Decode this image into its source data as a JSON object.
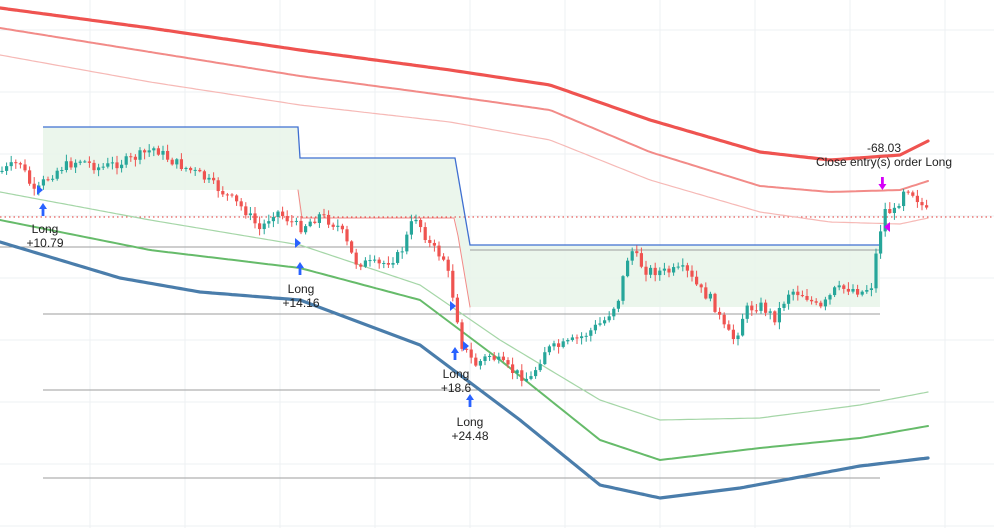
{
  "chart_data": {
    "type": "candlestick",
    "colors": {
      "up": "#26a69a",
      "down": "#ef5350",
      "upper_bands": [
        "#ef5350",
        "#f28b88",
        "#f6b9b6"
      ],
      "lower_bands": [
        "#a5d6a7",
        "#66bb6a",
        "#4a7dab"
      ],
      "stop_line": "#3f6fd1",
      "fill_zone": "#e8f5e9",
      "level_lines": "#9e9e9e",
      "arrow_long": "#2962ff",
      "arrow_close": "#d500f9"
    },
    "annotations": [
      {
        "type": "entry",
        "lines": [
          "Long",
          "+10.79"
        ]
      },
      {
        "type": "entry",
        "lines": [
          "Long",
          "+14.16"
        ]
      },
      {
        "type": "entry",
        "lines": [
          "Long",
          "+18.6"
        ]
      },
      {
        "type": "entry",
        "lines": [
          "Long",
          "+24.48"
        ]
      },
      {
        "type": "exit",
        "lines": [
          "-68.03",
          "Close entry(s) order Long"
        ]
      }
    ]
  }
}
